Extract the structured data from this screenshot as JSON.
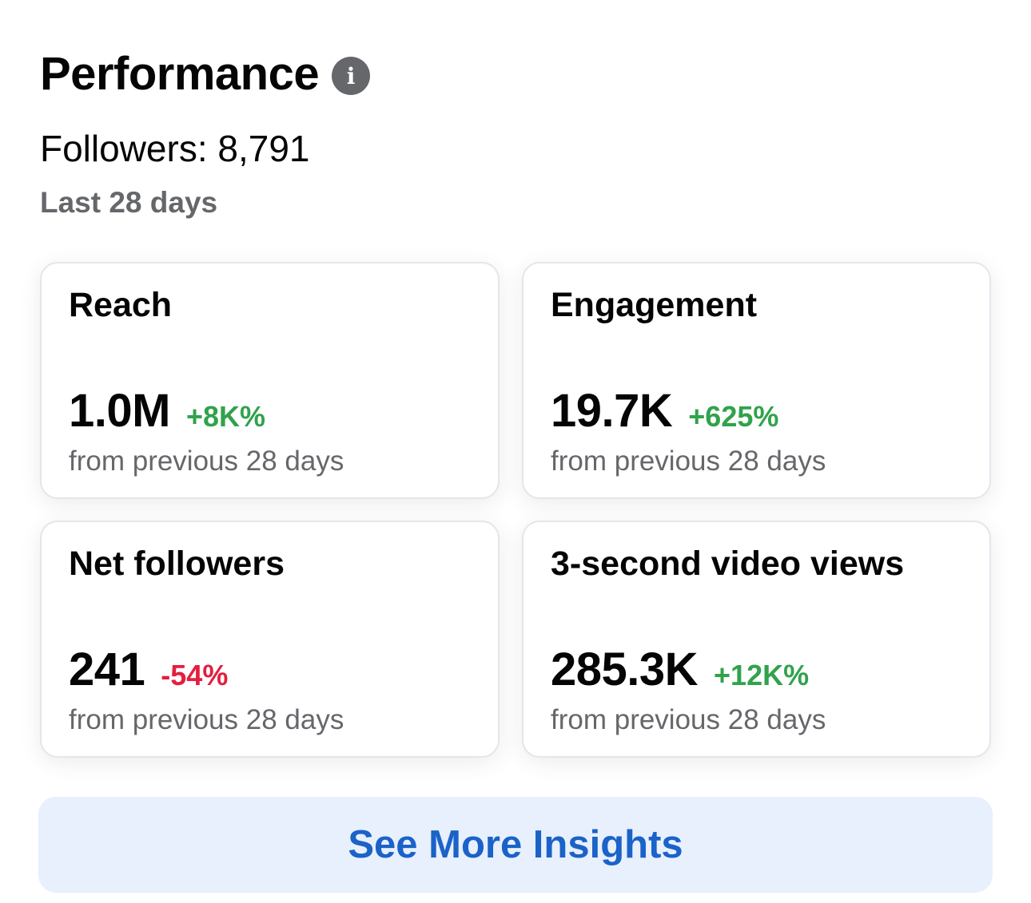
{
  "header": {
    "title": "Performance",
    "info_icon_glyph": "i",
    "followers_text": "Followers: 8,791",
    "period_text": "Last 28 days"
  },
  "cards": [
    {
      "title": "Reach",
      "value": "1.0M",
      "change": "+8K%",
      "trend": "up",
      "subtitle": "from previous 28 days"
    },
    {
      "title": "Engagement",
      "value": "19.7K",
      "change": "+625%",
      "trend": "up",
      "subtitle": "from previous 28 days"
    },
    {
      "title": "Net followers",
      "value": "241",
      "change": "-54%",
      "trend": "down",
      "subtitle": "from previous 28 days"
    },
    {
      "title": "3-second video views",
      "value": "285.3K",
      "change": "+12K%",
      "trend": "up",
      "subtitle": "from previous 28 days"
    }
  ],
  "actions": {
    "see_more_label": "See More Insights"
  },
  "colors": {
    "positive": "#31a24c",
    "negative": "#e41e3f",
    "link": "#1b62c9",
    "button_bg": "#e7f0fc",
    "muted_text": "#65676b"
  },
  "icons": {
    "info": "info-icon"
  }
}
